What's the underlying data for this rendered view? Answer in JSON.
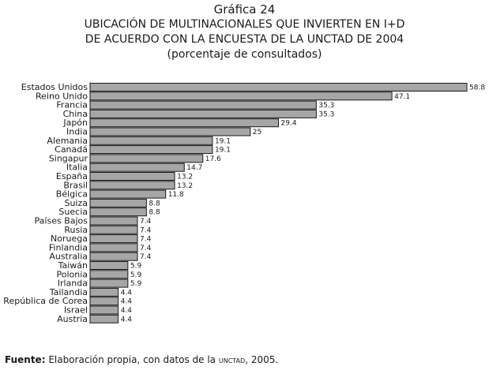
{
  "figure": {
    "label": "Gráfica 24",
    "title_line1": "UBICACIÓN DE MULTINACIONALES QUE INVIERTEN EN I+D",
    "title_line2": "DE ACUERDO CON LA ENCUESTA DE LA UNCTAD DE 2004",
    "subtitle": "(porcentaje de consultados)"
  },
  "source": {
    "prefix": "Fuente:",
    "text_before": " Elaboración propia, con datos de la ",
    "org": "unctad",
    "text_after": ", 2005."
  },
  "colors": {
    "bar_fill": "#a6a6a6",
    "bar_stroke": "#1a1a1a"
  },
  "chart_data": {
    "type": "bar",
    "orientation": "horizontal",
    "title": "UBICACIÓN DE MULTINACIONALES QUE INVIERTEN EN I+D DE ACUERDO CON LA ENCUESTA DE LA UNCTAD DE 2004",
    "subtitle": "(porcentaje de consultados)",
    "xlim": [
      0,
      58.8
    ],
    "grid": false,
    "categories": [
      "Estados Unidos",
      "Reino Unido",
      "Francia",
      "China",
      "Japón",
      "India",
      "Alemania",
      "Canadá",
      "Singapur",
      "Italia",
      "España",
      "Brasil",
      "Bélgica",
      "Suiza",
      "Suecia",
      "Países Bajos",
      "Rusia",
      "Noruega",
      "Finlandia",
      "Australia",
      "Taiwán",
      "Polonia",
      "Irlanda",
      "Tailandia",
      "República de Corea",
      "Israel",
      "Austria"
    ],
    "values": [
      58.8,
      47.1,
      35.3,
      35.3,
      29.4,
      25,
      19.1,
      19.1,
      17.6,
      14.7,
      13.2,
      13.2,
      11.8,
      8.8,
      8.8,
      7.4,
      7.4,
      7.4,
      7.4,
      7.4,
      5.9,
      5.9,
      5.9,
      4.4,
      4.4,
      4.4,
      4.4
    ],
    "value_labels": [
      "58.8",
      "47.1",
      "35.3",
      "35.3",
      "29.4",
      "25",
      "19.1",
      "19.1",
      "17.6",
      "14.7",
      "13.2",
      "13.2",
      "11.8",
      "8.8",
      "8.8",
      "7.4",
      "7.4",
      "7.4",
      "7.4",
      "7.4",
      "5.9",
      "5.9",
      "5.9",
      "4.4",
      "4.4",
      "4.4",
      "4.4"
    ]
  }
}
